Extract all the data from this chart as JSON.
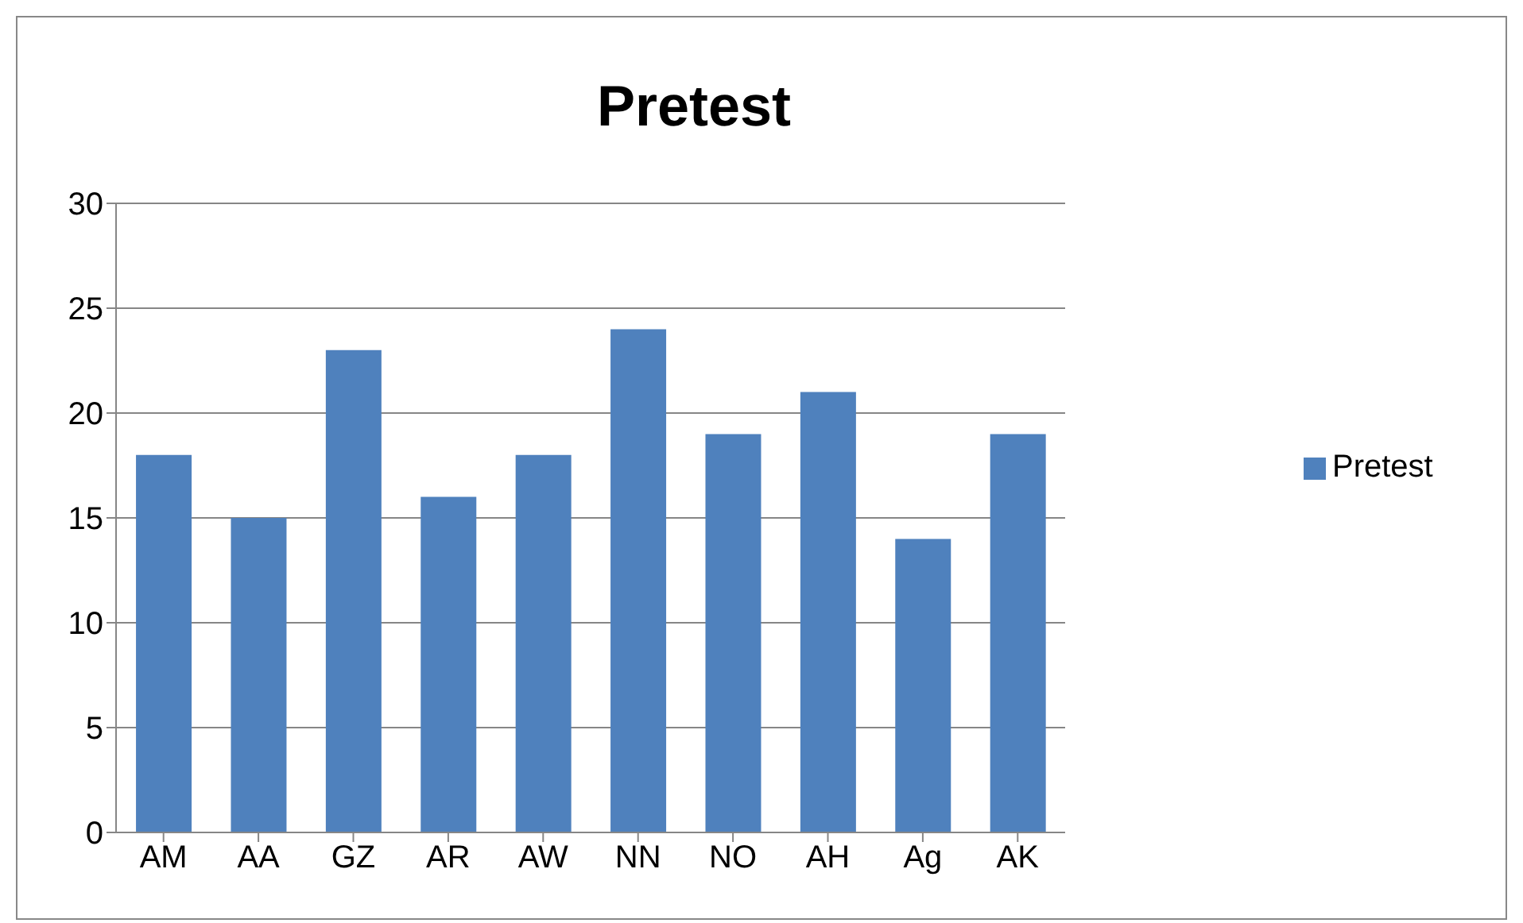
{
  "chart_data": {
    "type": "bar",
    "title": "Pretest",
    "categories": [
      "AM",
      "AA",
      "GZ",
      "AR",
      "AW",
      "NN",
      "NO",
      "AH",
      "Ag",
      "AK"
    ],
    "series": [
      {
        "name": "Pretest",
        "color": "#4f81bd",
        "values": [
          18,
          15,
          23,
          16,
          18,
          24,
          19,
          21,
          14,
          19
        ]
      }
    ],
    "ylim": [
      0,
      30
    ],
    "yticks": [
      0,
      5,
      10,
      15,
      20,
      25,
      30
    ],
    "grid": "y",
    "legend": "right"
  }
}
